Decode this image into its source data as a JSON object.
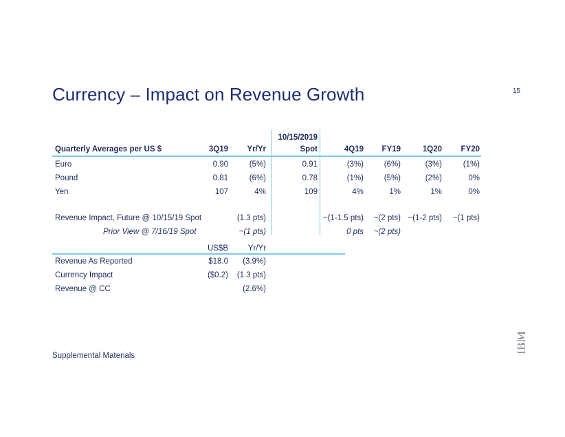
{
  "title": "Currency – Impact on Revenue Growth",
  "page_number": "15",
  "fx_table": {
    "header": {
      "label": "Quarterly Averages per US $",
      "q3": "3Q19",
      "yy": "Yr/Yr",
      "spot_line1": "10/15/2019",
      "spot_line2": "Spot",
      "q4": "4Q19",
      "fy19": "FY19",
      "q1": "1Q20",
      "fy20": "FY20"
    },
    "rows": [
      {
        "label": "Euro",
        "q3": "0.90",
        "yy": "(5%)",
        "spot": "0.91",
        "q4": "(3%)",
        "fy19": "(6%)",
        "q1": "(3%)",
        "fy20": "(1%)"
      },
      {
        "label": "Pound",
        "q3": "0.81",
        "yy": "(6%)",
        "spot": "0.78",
        "q4": "(1%)",
        "fy19": "(5%)",
        "q1": "(2%)",
        "fy20": "0%"
      },
      {
        "label": "Yen",
        "q3": "107",
        "yy": "4%",
        "spot": "109",
        "q4": "4%",
        "fy19": "1%",
        "q1": "1%",
        "fy20": "0%"
      }
    ],
    "impact": {
      "label": "Revenue Impact, Future @ 10/15/19 Spot",
      "yy": "(1.3 pts)",
      "q4": "~(1-1.5 pts)",
      "fy19": "~(2 pts)",
      "q1": "~(1-2 pts)",
      "fy20": "~(1 pts)"
    },
    "prior": {
      "label": "Prior View @ 7/16/19 Spot",
      "yy": "~(1 pts)",
      "q4": "0 pts",
      "fy19": "~(2 pts)"
    }
  },
  "rev_table": {
    "header": {
      "usd": "US$B",
      "yy": "Yr/Yr"
    },
    "rows": [
      {
        "label": "Revenue As Reported",
        "usd": "$18.0",
        "yy": "(3.9%)"
      },
      {
        "label": "Currency Impact",
        "usd": "($0.2)",
        "yy": "(1.3 pts)"
      },
      {
        "label": "Revenue @ CC",
        "usd": "",
        "yy": "(2.6%)"
      }
    ]
  },
  "footer": "Supplemental Materials",
  "logo_text": "IBM",
  "colors": {
    "title": "#1f2d73",
    "text": "#1f2d5c",
    "rule": "#7cc6ee"
  }
}
